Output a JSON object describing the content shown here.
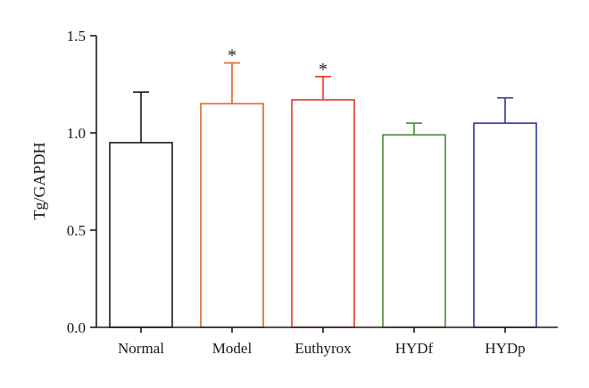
{
  "chart_data": {
    "type": "bar",
    "ylabel": "Tg/GAPDH",
    "xlabel": "",
    "ylim": [
      0,
      1.5
    ],
    "yticks": [
      "0.0",
      "0.5",
      "1.0",
      "1.5"
    ],
    "grid": false,
    "categories": [
      "Normal",
      "Model",
      "Euthyrox",
      "HYDf",
      "HYDp"
    ],
    "values": [
      0.95,
      1.15,
      1.17,
      0.99,
      1.05
    ],
    "error_upper": [
      0.26,
      0.21,
      0.12,
      0.06,
      0.13
    ],
    "significance": [
      "",
      "*",
      "*",
      "",
      ""
    ],
    "colors": [
      "#1a1a1a",
      "#e0642a",
      "#e8392a",
      "#4a8a3c",
      "#2e3a9e"
    ]
  }
}
